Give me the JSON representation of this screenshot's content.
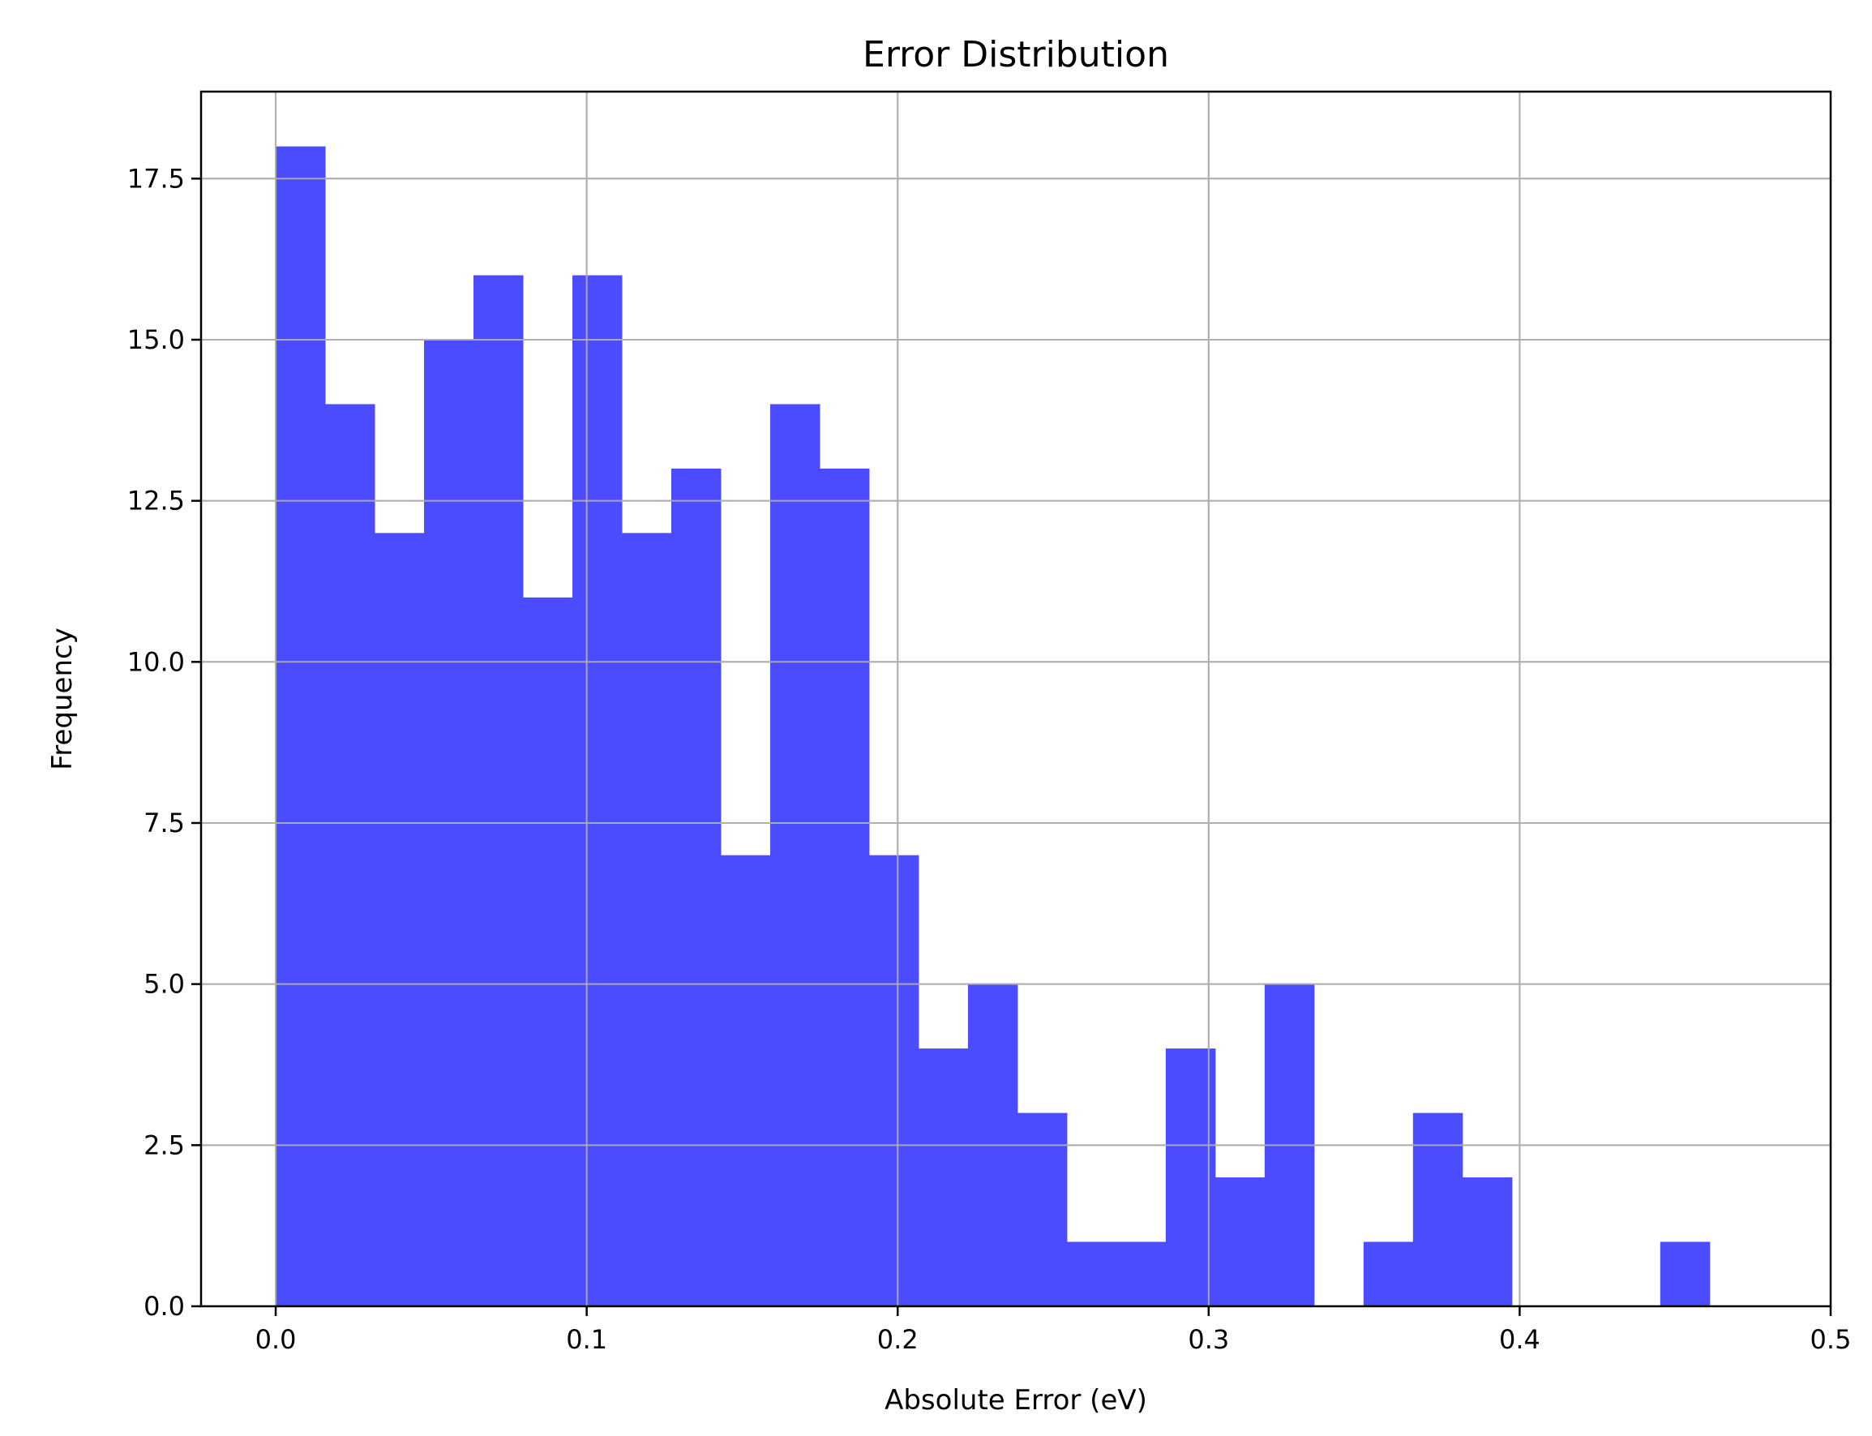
{
  "chart_data": {
    "type": "bar",
    "title": "Error Distribution",
    "xlabel": "Absolute Error (eV)",
    "ylabel": "Frequency",
    "xlim": [
      -0.024,
      0.5
    ],
    "ylim": [
      0,
      18.85
    ],
    "grid": true,
    "bar_color": "#4b4bff",
    "x_ticks": [
      {
        "value": 0.0,
        "label": "0.0"
      },
      {
        "value": 0.1,
        "label": "0.1"
      },
      {
        "value": 0.2,
        "label": "0.2"
      },
      {
        "value": 0.3,
        "label": "0.3"
      },
      {
        "value": 0.4,
        "label": "0.4"
      },
      {
        "value": 0.5,
        "label": "0.5"
      }
    ],
    "y_ticks": [
      {
        "value": 0.0,
        "label": "0.0"
      },
      {
        "value": 2.5,
        "label": "2.5"
      },
      {
        "value": 5.0,
        "label": "5.0"
      },
      {
        "value": 7.5,
        "label": "7.5"
      },
      {
        "value": 10.0,
        "label": "10.0"
      },
      {
        "value": 12.5,
        "label": "12.5"
      },
      {
        "value": 15.0,
        "label": "15.0"
      },
      {
        "value": 17.5,
        "label": "17.5"
      }
    ],
    "bin_edges": [
      0.0,
      0.0159,
      0.0318,
      0.0477,
      0.0636,
      0.0795,
      0.0954,
      0.1113,
      0.1272,
      0.1431,
      0.159,
      0.1749,
      0.1908,
      0.2067,
      0.2226,
      0.2385,
      0.2544,
      0.2703,
      0.2862,
      0.3021,
      0.318,
      0.3339,
      0.3498,
      0.3657,
      0.3816,
      0.3975,
      0.4134,
      0.4293,
      0.4452,
      0.4611,
      0.477
    ],
    "values": [
      18,
      14,
      12,
      15,
      16,
      11,
      16,
      12,
      13,
      7,
      14,
      13,
      7,
      4,
      5,
      3,
      1,
      1,
      4,
      2,
      5,
      0,
      1,
      3,
      2,
      0,
      0,
      0,
      1,
      0
    ]
  }
}
